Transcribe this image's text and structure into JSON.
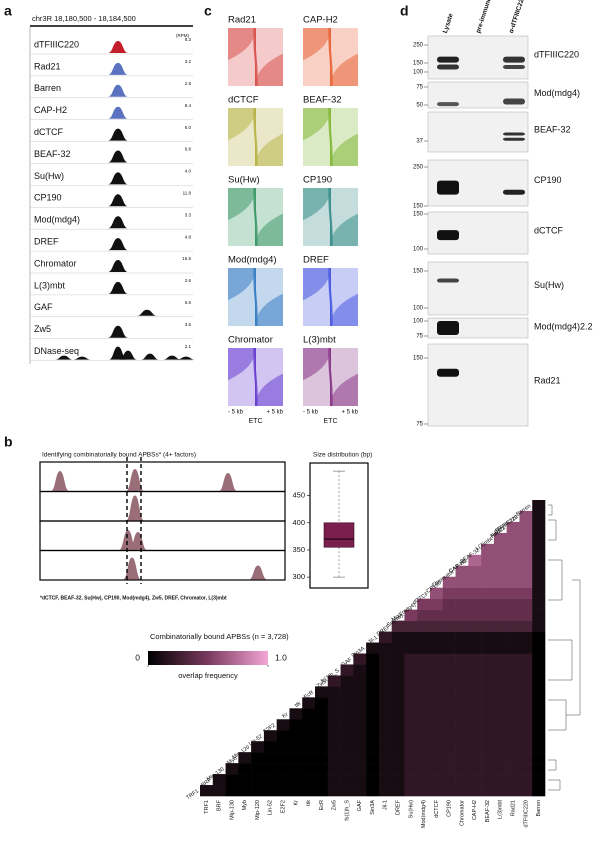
{
  "panel_a": {
    "label": "a",
    "region": "chr3R 18,180,500 - 18,184,500",
    "unit": "(RPM)",
    "tracks": [
      {
        "name": "dTFIIIC220",
        "scale": 8.3,
        "color": "#c41e2a"
      },
      {
        "name": "Rad21",
        "scale": 3.2,
        "color": "#5a72c0"
      },
      {
        "name": "Barren",
        "scale": 2.8,
        "color": "#5a72c0"
      },
      {
        "name": "CAP-H2",
        "scale": 8.4,
        "color": "#5a72c0"
      },
      {
        "name": "dCTCF",
        "scale": {
          "value": 6,
          "label": "6.0"
        },
        "color": "#111111"
      },
      {
        "name": "BEAF-32",
        "scale": 6.8,
        "color": "#111111"
      },
      {
        "name": "Su(Hw)",
        "scale": {
          "value": 4,
          "label": "4.0"
        },
        "color": "#111111"
      },
      {
        "name": "CP190",
        "scale": 11.8,
        "color": "#111111"
      },
      {
        "name": "Mod(mdg4)",
        "scale": 3.3,
        "color": "#111111"
      },
      {
        "name": "DREF",
        "scale": 4.8,
        "color": "#111111"
      },
      {
        "name": "Chromator",
        "scale": 15.5,
        "color": "#111111"
      },
      {
        "name": "L(3)mbt",
        "scale": 2.6,
        "color": "#111111"
      },
      {
        "name": "GAF",
        "scale": 6.6,
        "color": "#111111"
      },
      {
        "name": "Zw5",
        "scale": 3.6,
        "color": "#111111"
      },
      {
        "name": "DNase-seq",
        "scale": 2.1,
        "color": "#111111"
      }
    ]
  },
  "panel_b": {
    "label": "b",
    "peaks_title": "Identifying combinatorially bound APBSs* (4+ factors)",
    "peak_color": "#9a6e78",
    "footnote": "*dCTCF, BEAF-32, Su(Hw), CP190, Mod(mdg4), Zw5, DREF, Chromator, L(3)mbt",
    "size_plot": {
      "type": "box",
      "title": "Size distribution (bp)",
      "ylim": [
        280,
        510
      ],
      "yticks": [
        300,
        350,
        400,
        450
      ],
      "whisker_low": 300,
      "q1": 355,
      "median": 370,
      "q3": 400,
      "whisker_high": 495,
      "color": "#7a1f4e"
    },
    "heatmap": {
      "type": "heatmap",
      "title": "Combinatorially bound APBSs (n = 3,728)",
      "colorbar_label": "overlap frequency",
      "colorbar_ticks": [
        0,
        {
          "value": 1,
          "label": "1.0"
        }
      ],
      "colors": [
        "#000000",
        "#7a3a5e",
        "#f4a6d6"
      ],
      "highlight": [
        21,
        24,
        25
      ],
      "highlight_color": "#b01c2e",
      "labels": [
        "TRF1",
        "BRF",
        "Mip-130",
        "Myb",
        "Mip-120",
        "Lin-52",
        "E2F2",
        "Kr",
        "ttk",
        "EcR",
        "Zw5",
        "fs(1)h_S",
        "GAF",
        "Sin3A",
        "Jil-1",
        "DREF",
        "Su(Hw)",
        "Mod(mdg4)",
        "dCTCF",
        "CP190",
        "Chromator",
        "CAP-H2",
        "BEAF-32",
        "L(3)mbt",
        "Rad21",
        "dTFIIIC220",
        "Barren"
      ],
      "values": [
        [
          0.1,
          0.1,
          0,
          0,
          0,
          0,
          0,
          0,
          0,
          0,
          0.1,
          0.1,
          0.1,
          0,
          0.1,
          0.1,
          0.2,
          0.2,
          0.2,
          0.2,
          0.2,
          0.2,
          0.2,
          0.2,
          0.2,
          0.2,
          0
        ],
        [
          null,
          0.1,
          0,
          0,
          0,
          0,
          0,
          0,
          0,
          0,
          0.1,
          0.1,
          0.1,
          0,
          0.1,
          0.1,
          0.2,
          0.2,
          0.2,
          0.2,
          0.2,
          0.2,
          0.2,
          0.2,
          0.2,
          0.2,
          0
        ],
        [
          null,
          null,
          0.1,
          0,
          0,
          0,
          0,
          0,
          0,
          0,
          0.1,
          0.1,
          0.1,
          0,
          0.1,
          0.1,
          0.2,
          0.2,
          0.2,
          0.2,
          0.2,
          0.2,
          0.2,
          0.2,
          0.2,
          0.2,
          0
        ],
        [
          null,
          null,
          null,
          0.1,
          0,
          0,
          0,
          0,
          0,
          0,
          0.1,
          0.1,
          0.1,
          0,
          0.1,
          0.1,
          0.2,
          0.2,
          0.2,
          0.2,
          0.2,
          0.2,
          0.2,
          0.2,
          0.2,
          0.2,
          0
        ],
        [
          null,
          null,
          null,
          null,
          0.1,
          0,
          0,
          0,
          0,
          0,
          0.1,
          0.1,
          0.1,
          0,
          0.1,
          0.1,
          0.2,
          0.2,
          0.2,
          0.2,
          0.2,
          0.2,
          0.2,
          0.2,
          0.2,
          0.2,
          0
        ],
        [
          null,
          null,
          null,
          null,
          null,
          0.1,
          0,
          0,
          0,
          0,
          0.1,
          0.1,
          0.1,
          0,
          0.1,
          0.1,
          0.2,
          0.2,
          0.2,
          0.2,
          0.2,
          0.2,
          0.2,
          0.2,
          0.2,
          0.2,
          0
        ],
        [
          null,
          null,
          null,
          null,
          null,
          null,
          0.1,
          0,
          0,
          0,
          0.1,
          0.1,
          0.1,
          0,
          0.1,
          0.1,
          0.2,
          0.2,
          0.2,
          0.2,
          0.2,
          0.2,
          0.2,
          0.2,
          0.2,
          0.2,
          0
        ],
        [
          null,
          null,
          null,
          null,
          null,
          null,
          null,
          0.1,
          0,
          0,
          0.1,
          0.1,
          0.1,
          0,
          0.1,
          0.1,
          0.2,
          0.2,
          0.2,
          0.2,
          0.2,
          0.2,
          0.2,
          0.2,
          0.2,
          0.2,
          0
        ],
        [
          null,
          null,
          null,
          null,
          null,
          null,
          null,
          null,
          0.1,
          0,
          0.1,
          0.1,
          0.1,
          0,
          0.1,
          0.1,
          0.2,
          0.2,
          0.2,
          0.2,
          0.2,
          0.2,
          0.2,
          0.2,
          0.2,
          0.2,
          0
        ],
        [
          null,
          null,
          null,
          null,
          null,
          null,
          null,
          null,
          null,
          0.1,
          0.1,
          0.1,
          0.1,
          0,
          0.1,
          0.1,
          0.2,
          0.2,
          0.2,
          0.2,
          0.2,
          0.2,
          0.2,
          0.2,
          0.2,
          0.2,
          0
        ],
        [
          null,
          null,
          null,
          null,
          null,
          null,
          null,
          null,
          null,
          null,
          0.2,
          0.1,
          0.1,
          0,
          0.1,
          0.1,
          0.2,
          0.2,
          0.2,
          0.2,
          0.2,
          0.2,
          0.2,
          0.2,
          0.2,
          0.2,
          0
        ],
        [
          null,
          null,
          null,
          null,
          null,
          null,
          null,
          null,
          null,
          null,
          null,
          0.2,
          0.1,
          0,
          0.1,
          0.1,
          0.2,
          0.2,
          0.2,
          0.2,
          0.2,
          0.2,
          0.2,
          0.2,
          0.2,
          0.2,
          0
        ],
        [
          null,
          null,
          null,
          null,
          null,
          null,
          null,
          null,
          null,
          null,
          null,
          null,
          0.2,
          0,
          0.1,
          0.1,
          0.2,
          0.2,
          0.2,
          0.2,
          0.2,
          0.2,
          0.2,
          0.2,
          0.2,
          0.2,
          0
        ],
        [
          null,
          null,
          null,
          null,
          null,
          null,
          null,
          null,
          null,
          null,
          null,
          null,
          null,
          0.1,
          0.1,
          0.1,
          0.1,
          0.1,
          0.1,
          0.1,
          0.1,
          0.1,
          0.1,
          0.1,
          0.1,
          0.1,
          0
        ],
        [
          null,
          null,
          null,
          null,
          null,
          null,
          null,
          null,
          null,
          null,
          null,
          null,
          null,
          null,
          0.2,
          0.1,
          0.1,
          0.1,
          0.1,
          0.1,
          0.1,
          0.1,
          0.1,
          0.1,
          0.1,
          0.1,
          0
        ],
        [
          null,
          null,
          null,
          null,
          null,
          null,
          null,
          null,
          null,
          null,
          null,
          null,
          null,
          null,
          null,
          0.3,
          0.3,
          0.3,
          0.3,
          0.3,
          0.3,
          0.3,
          0.3,
          0.3,
          0.3,
          0.3,
          0.1
        ],
        [
          null,
          null,
          null,
          null,
          null,
          null,
          null,
          null,
          null,
          null,
          null,
          null,
          null,
          null,
          null,
          null,
          0.5,
          0.4,
          0.4,
          0.4,
          0.4,
          0.4,
          0.4,
          0.4,
          0.4,
          0.4,
          0.1
        ],
        [
          null,
          null,
          null,
          null,
          null,
          null,
          null,
          null,
          null,
          null,
          null,
          null,
          null,
          null,
          null,
          null,
          null,
          0.5,
          0.5,
          0.4,
          0.4,
          0.4,
          0.4,
          0.4,
          0.4,
          0.4,
          0.1
        ],
        [
          null,
          null,
          null,
          null,
          null,
          null,
          null,
          null,
          null,
          null,
          null,
          null,
          null,
          null,
          null,
          null,
          null,
          null,
          0.6,
          0.5,
          0.5,
          0.5,
          0.5,
          0.5,
          0.5,
          0.5,
          0.1
        ],
        [
          null,
          null,
          null,
          null,
          null,
          null,
          null,
          null,
          null,
          null,
          null,
          null,
          null,
          null,
          null,
          null,
          null,
          null,
          null,
          0.6,
          0.6,
          0.6,
          0.6,
          0.6,
          0.6,
          0.6,
          0.1
        ],
        [
          null,
          null,
          null,
          null,
          null,
          null,
          null,
          null,
          null,
          null,
          null,
          null,
          null,
          null,
          null,
          null,
          null,
          null,
          null,
          null,
          0.6,
          0.6,
          0.6,
          0.6,
          0.6,
          0.6,
          0.1
        ],
        [
          null,
          null,
          null,
          null,
          null,
          null,
          null,
          null,
          null,
          null,
          null,
          null,
          null,
          null,
          null,
          null,
          null,
          null,
          null,
          null,
          null,
          0.7,
          0.6,
          0.6,
          0.6,
          0.6,
          0.1
        ],
        [
          null,
          null,
          null,
          null,
          null,
          null,
          null,
          null,
          null,
          null,
          null,
          null,
          null,
          null,
          null,
          null,
          null,
          null,
          null,
          null,
          null,
          null,
          0.6,
          0.6,
          0.6,
          0.6,
          0.1
        ],
        [
          null,
          null,
          null,
          null,
          null,
          null,
          null,
          null,
          null,
          null,
          null,
          null,
          null,
          null,
          null,
          null,
          null,
          null,
          null,
          null,
          null,
          null,
          null,
          0.6,
          0.6,
          0.6,
          0.1
        ],
        [
          null,
          null,
          null,
          null,
          null,
          null,
          null,
          null,
          null,
          null,
          null,
          null,
          null,
          null,
          null,
          null,
          null,
          null,
          null,
          null,
          null,
          null,
          null,
          null,
          0.6,
          0.6,
          0.1
        ],
        [
          null,
          null,
          null,
          null,
          null,
          null,
          null,
          null,
          null,
          null,
          null,
          null,
          null,
          null,
          null,
          null,
          null,
          null,
          null,
          null,
          null,
          null,
          null,
          null,
          null,
          0.6,
          0.1
        ],
        [
          null,
          null,
          null,
          null,
          null,
          null,
          null,
          null,
          null,
          null,
          null,
          null,
          null,
          null,
          null,
          null,
          null,
          null,
          null,
          null,
          null,
          null,
          null,
          null,
          null,
          null,
          0.1
        ]
      ]
    }
  },
  "panel_c": {
    "label": "c",
    "x_left": "- 5 kb",
    "x_right": "+ 5 kb",
    "x_center": "ETC",
    "panels": [
      {
        "name": "Rad21",
        "color": "#d9534f"
      },
      {
        "name": "CAP-H2",
        "color": "#e8663a"
      },
      {
        "name": "dCTCF",
        "color": "#b8b44a"
      },
      {
        "name": "BEAF-32",
        "color": "#84b83a"
      },
      {
        "name": "Su(Hw)",
        "color": "#3f9a6a"
      },
      {
        "name": "CP190",
        "color": "#3a8f8c"
      },
      {
        "name": "Mod(mdg4)",
        "color": "#3b7fc4"
      },
      {
        "name": "DREF",
        "color": "#4a5be0"
      },
      {
        "name": "Chromator",
        "color": "#6a40d0"
      },
      {
        "name": "L(3)mbt",
        "color": "#8a3a8a"
      }
    ]
  },
  "panel_d": {
    "label": "d",
    "lanes": [
      "Lysate",
      "pre-immune",
      "α-dTFIIIC220"
    ],
    "blots": [
      {
        "name": "dTFIIIC220",
        "markers": [
          250,
          150,
          100
        ]
      },
      {
        "name": "Mod(mdg4)",
        "markers": [
          75,
          50
        ]
      },
      {
        "name": "BEAF-32",
        "markers": [
          37
        ]
      },
      {
        "name": "CP190",
        "markers": [
          250,
          150
        ]
      },
      {
        "name": "dCTCF",
        "markers": [
          150,
          100
        ]
      },
      {
        "name": "Su(Hw)",
        "markers": [
          150,
          100
        ]
      },
      {
        "name": "Mod(mdg4)2.2",
        "markers": [
          100,
          75
        ]
      },
      {
        "name": "Rad21",
        "markers": [
          150,
          75
        ]
      }
    ]
  }
}
